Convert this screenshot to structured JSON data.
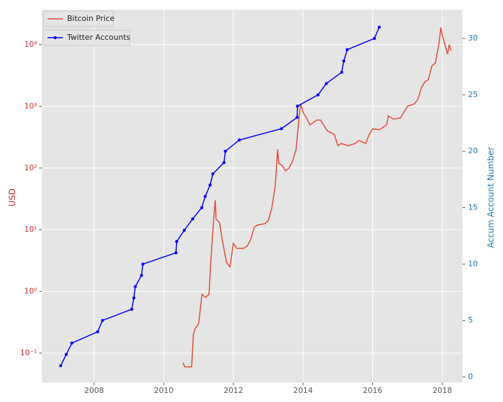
{
  "chart_data": {
    "type": "line",
    "xlim": [
      2006.5,
      2018.58
    ],
    "xticks": [
      2008,
      2010,
      2012,
      2014,
      2016,
      2018
    ],
    "ylabel": "USD",
    "y2label": "Accum Account Number",
    "ylog": true,
    "ylim": [
      0.0335,
      36700
    ],
    "yticks": [
      {
        "value": 0.1,
        "label": "10⁻¹"
      },
      {
        "value": 1,
        "label": "10⁰"
      },
      {
        "value": 10,
        "label": "10¹"
      },
      {
        "value": 100,
        "label": "10²"
      },
      {
        "value": 1000,
        "label": "10³"
      },
      {
        "value": 10000,
        "label": "10⁴"
      }
    ],
    "y2lim": [
      -0.49,
      32.54
    ],
    "y2ticks": [
      0,
      5,
      10,
      15,
      20,
      25,
      30
    ],
    "grid": true,
    "ylabel_color": "#d62728",
    "y2label_color": "#1f77b4",
    "series": [
      {
        "name": "Bitcoin Price",
        "color": "#e24a33",
        "marker": false,
        "x": [
          2010.55,
          2010.6,
          2010.8,
          2010.85,
          2010.9,
          2011.0,
          2011.1,
          2011.2,
          2011.3,
          2011.35,
          2011.4,
          2011.45,
          2011.48,
          2011.5,
          2011.6,
          2011.7,
          2011.8,
          2011.9,
          2012.0,
          2012.1,
          2012.3,
          2012.4,
          2012.5,
          2012.6,
          2012.7,
          2012.9,
          2013.0,
          2013.1,
          2013.2,
          2013.27,
          2013.3,
          2013.4,
          2013.5,
          2013.6,
          2013.7,
          2013.8,
          2013.9,
          2013.93,
          2014.0,
          2014.1,
          2014.2,
          2014.4,
          2014.5,
          2014.7,
          2014.9,
          2015.0,
          2015.1,
          2015.3,
          2015.5,
          2015.6,
          2015.8,
          2015.9,
          2016.0,
          2016.2,
          2016.4,
          2016.45,
          2016.6,
          2016.8,
          2017.0,
          2017.2,
          2017.3,
          2017.4,
          2017.5,
          2017.6,
          2017.7,
          2017.8,
          2017.9,
          2017.96,
          2018.0,
          2018.1,
          2018.15,
          2018.2,
          2018.25
        ],
        "values": [
          0.07,
          0.06,
          0.06,
          0.2,
          0.25,
          0.3,
          0.9,
          0.8,
          0.9,
          3,
          8,
          20,
          30,
          15,
          13,
          6,
          3,
          2.5,
          6,
          5,
          5,
          5.5,
          7,
          11,
          12,
          12.5,
          14,
          22,
          50,
          200,
          120,
          110,
          90,
          100,
          130,
          200,
          800,
          1100,
          800,
          650,
          500,
          600,
          600,
          400,
          350,
          230,
          250,
          230,
          250,
          280,
          250,
          350,
          430,
          420,
          500,
          700,
          620,
          650,
          1000,
          1100,
          1300,
          2000,
          2500,
          2700,
          4500,
          5000,
          10000,
          19000,
          14000,
          9000,
          7000,
          10000,
          8000
        ]
      },
      {
        "name": "Twitter Accounts",
        "color": "#0000ff",
        "marker": true,
        "axis": "y2",
        "x": [
          2007.04,
          2007.2,
          2007.36,
          2008.1,
          2008.24,
          2009.08,
          2009.14,
          2009.18,
          2009.36,
          2009.4,
          2010.35,
          2010.37,
          2010.59,
          2010.83,
          2011.09,
          2011.19,
          2011.33,
          2011.41,
          2011.73,
          2011.77,
          2012.17,
          2013.38,
          2013.83,
          2013.84,
          2014.43,
          2014.67,
          2015.11,
          2015.17,
          2015.27,
          2016.05,
          2016.19
        ],
        "values": [
          1,
          2,
          3,
          4,
          5,
          6,
          7,
          8,
          9,
          10,
          11,
          12,
          13,
          14,
          15,
          16,
          17,
          18,
          19,
          20,
          21,
          22,
          23,
          24,
          25,
          26,
          27,
          28,
          29,
          30,
          31
        ]
      }
    ]
  }
}
